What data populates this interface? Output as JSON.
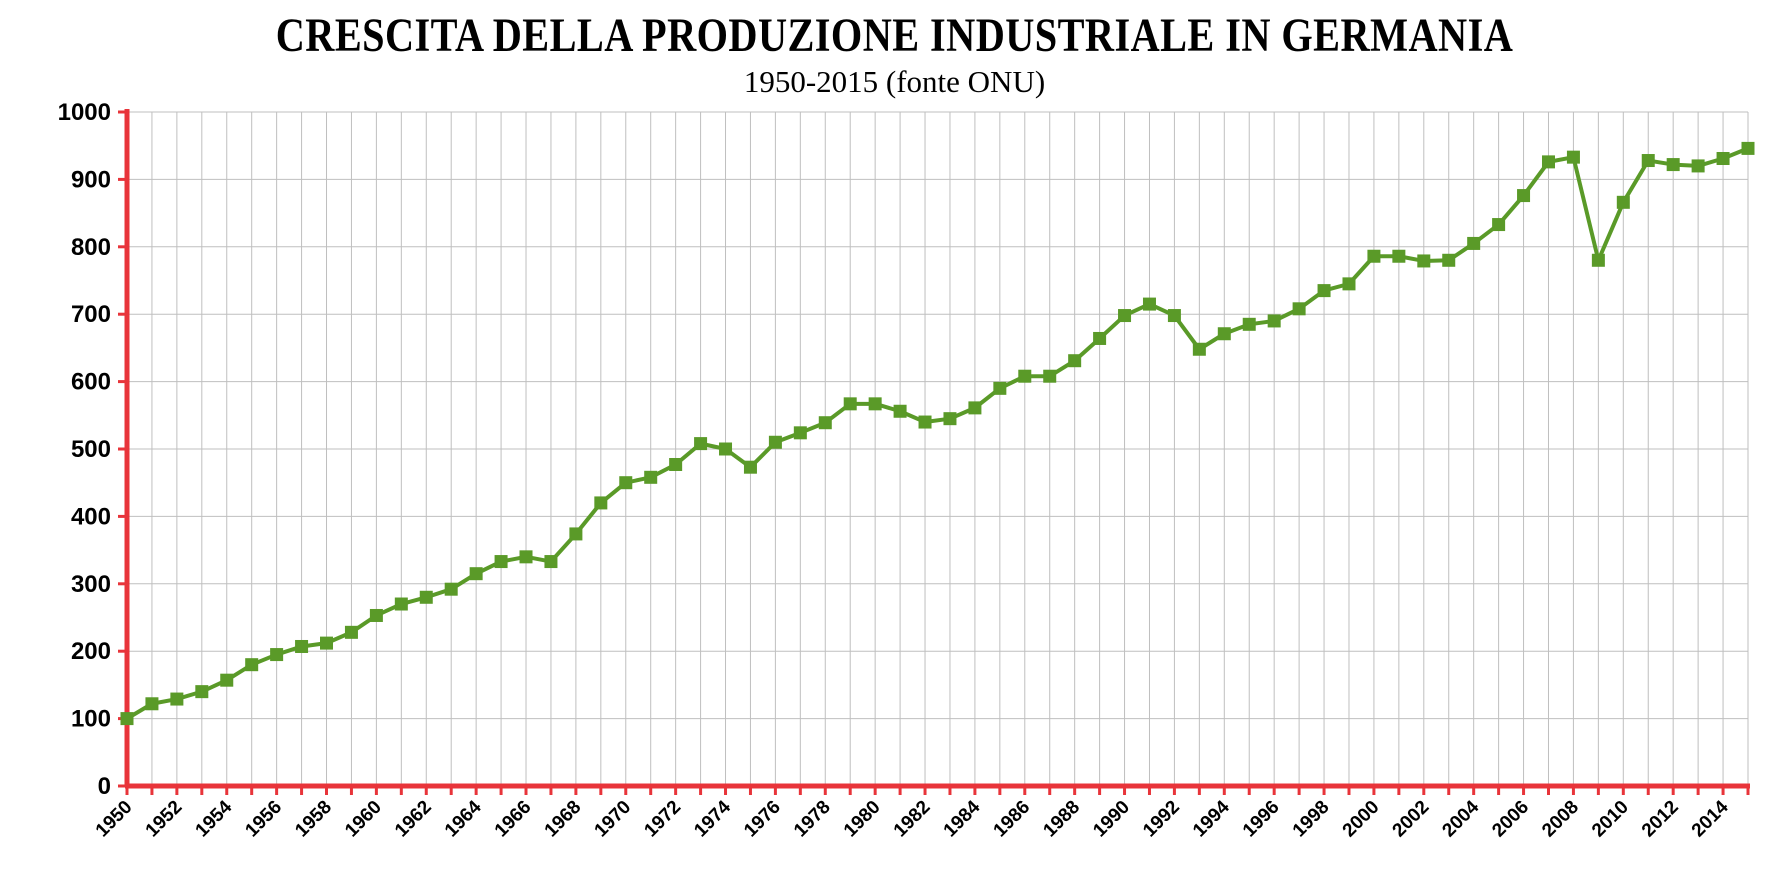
{
  "chart_data": {
    "type": "line",
    "title": "CRESCITA DELLA PRODUZIONE INDUSTRIALE IN GERMANIA",
    "subtitle": "1950-2015 (fonte ONU)",
    "xlabel": "",
    "ylabel": "",
    "ylim": [
      0,
      1000
    ],
    "xlim": [
      1950,
      2015
    ],
    "grid": true,
    "legend": "none",
    "y_ticks": [
      0,
      100,
      200,
      300,
      400,
      500,
      600,
      700,
      800,
      900,
      1000
    ],
    "x_tick_labels": [
      "1950",
      "1952",
      "1954",
      "1956",
      "1958",
      "1960",
      "1962",
      "1964",
      "1966",
      "1968",
      "1970",
      "1972",
      "1974",
      "1976",
      "1978",
      "1980",
      "1982",
      "1984",
      "1986",
      "1988",
      "1990",
      "1992",
      "1994",
      "1996",
      "1998",
      "2000",
      "2002",
      "2004",
      "2006",
      "2008",
      "2010",
      "2012",
      "2014"
    ],
    "colors": {
      "series": "#5a9a28",
      "axis": "#e8343a",
      "grid": "#bfbfbf"
    },
    "series": [
      {
        "x": [
          1950,
          1951,
          1952,
          1953,
          1954,
          1955,
          1956,
          1957,
          1958,
          1959,
          1960,
          1961,
          1962,
          1963,
          1964,
          1965,
          1966,
          1967,
          1968,
          1969,
          1970,
          1971,
          1972,
          1973,
          1974,
          1975,
          1976,
          1977,
          1978,
          1979,
          1980,
          1981,
          1982,
          1983,
          1984,
          1985,
          1986,
          1987,
          1988,
          1989,
          1990,
          1991,
          1992,
          1993,
          1994,
          1995,
          1996,
          1997,
          1998,
          1999,
          2000,
          2001,
          2002,
          2003,
          2004,
          2005,
          2006,
          2007,
          2008,
          2009,
          2010,
          2011,
          2012,
          2013,
          2014,
          2015
        ],
        "values": [
          100,
          122,
          129,
          140,
          157,
          180,
          195,
          207,
          212,
          228,
          253,
          270,
          280,
          292,
          315,
          333,
          340,
          333,
          374,
          420,
          450,
          458,
          477,
          508,
          500,
          473,
          510,
          524,
          539,
          567,
          567,
          556,
          540,
          545,
          561,
          590,
          608,
          608,
          631,
          664,
          698,
          715,
          698,
          648,
          671,
          685,
          690,
          708,
          735,
          745,
          786,
          786,
          779,
          780,
          805,
          833,
          876,
          926,
          933,
          780,
          866,
          928,
          922,
          920,
          931,
          946
        ]
      }
    ]
  }
}
